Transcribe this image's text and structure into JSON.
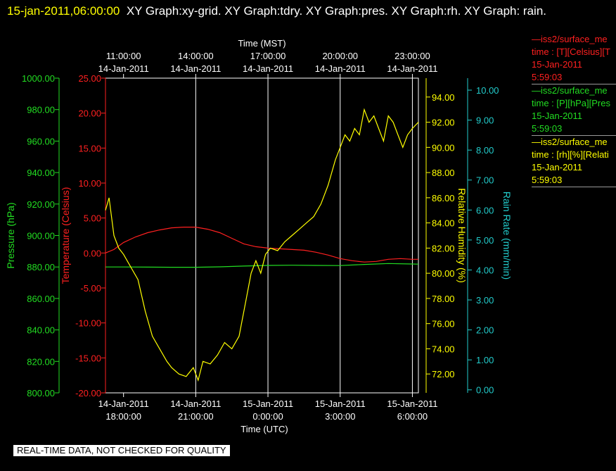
{
  "header": {
    "timestamp": "15-jan-2011,06:00:00",
    "title": "XY Graph:xy-grid.  XY Graph:tdry.  XY Graph:pres.  XY Graph:rh.  XY Graph: rain."
  },
  "footer": {
    "notice": "REAL-TIME DATA, NOT CHECKED FOR QUALITY"
  },
  "legend": [
    {
      "name": "iss2/surface_me",
      "line1": "—iss2/surface_me",
      "line2": "time : [T][Celsius][T",
      "line3": "15-Jan-2011",
      "line4": "5:59:03",
      "color": "#ff2020"
    },
    {
      "name": "iss2/surface_me",
      "line1": "—iss2/surface_me",
      "line2": "time : [P][hPa][Pres",
      "line3": "15-Jan-2011",
      "line4": "5:59:03",
      "color": "#22dd22"
    },
    {
      "name": "iss2/surface_me",
      "line1": "—iss2/surface_me",
      "line2": "time : [rh][%][Relati",
      "line3": "15-Jan-2011",
      "line4": "5:59:03",
      "color": "#ffff00"
    }
  ],
  "chart_data": {
    "type": "line",
    "x_range_utc_hours": [
      17.25,
      30.25
    ],
    "top_axis": {
      "label": "Time (MST)",
      "ticks": [
        {
          "time": "11:00:00",
          "date": "14-Jan-2011",
          "utc_hour": 18
        },
        {
          "time": "14:00:00",
          "date": "14-Jan-2011",
          "utc_hour": 21
        },
        {
          "time": "17:00:00",
          "date": "14-Jan-2011",
          "utc_hour": 24
        },
        {
          "time": "20:00:00",
          "date": "14-Jan-2011",
          "utc_hour": 27
        },
        {
          "time": "23:00:00",
          "date": "14-Jan-2011",
          "utc_hour": 30
        }
      ]
    },
    "bottom_axis": {
      "label": "Time (UTC)",
      "ticks": [
        {
          "date": "14-Jan-2011",
          "time": "18:00:00",
          "utc_hour": 18
        },
        {
          "date": "14-Jan-2011",
          "time": "21:00:00",
          "utc_hour": 21
        },
        {
          "date": "15-Jan-2011",
          "time": "0:00:00",
          "utc_hour": 24
        },
        {
          "date": "15-Jan-2011",
          "time": "3:00:00",
          "utc_hour": 27
        },
        {
          "date": "15-Jan-2011",
          "time": "6:00:00",
          "utc_hour": 30
        }
      ]
    },
    "grid_lines_utc_hours": [
      21,
      24,
      27,
      30
    ],
    "axes": {
      "pressure": {
        "label": "Pressure (hPa)",
        "range": [
          800,
          1000
        ],
        "color": "#22dd22",
        "ticks": [
          "800.00",
          "820.00",
          "840.00",
          "860.00",
          "880.00",
          "900.00",
          "920.00",
          "940.00",
          "960.00",
          "980.00",
          "1000.00"
        ]
      },
      "temperature": {
        "label": "Temperature (Celsius)",
        "range": [
          -20,
          25
        ],
        "color": "#ff2020",
        "ticks": [
          "-20.00",
          "-15.00",
          "-10.00",
          "-5.00",
          "0.00",
          "5.00",
          "10.00",
          "15.00",
          "20.00",
          "25.00"
        ]
      },
      "humidity": {
        "label": "Relative Humidity (%)",
        "range": [
          70.5,
          95.5
        ],
        "color": "#ffff00",
        "ticks": [
          "72.00",
          "74.00",
          "76.00",
          "78.00",
          "80.00",
          "82.00",
          "84.00",
          "86.00",
          "88.00",
          "90.00",
          "92.00",
          "94.00"
        ]
      },
      "rain": {
        "label": "Rain Rate (mm/min)",
        "range": [
          -0.1,
          10.4
        ],
        "color": "#22cccc",
        "ticks": [
          "0.00",
          "1.00",
          "2.00",
          "3.00",
          "4.00",
          "5.00",
          "6.00",
          "7.00",
          "8.00",
          "9.00",
          "10.00"
        ]
      }
    },
    "series": [
      {
        "name": "Temperature",
        "axis": "temperature",
        "color": "#ff2020",
        "x": [
          17.25,
          17.6,
          18.0,
          18.5,
          19.0,
          19.5,
          20.0,
          20.5,
          21.0,
          21.5,
          22.0,
          22.5,
          23.0,
          23.5,
          24.0,
          24.5,
          25.0,
          25.5,
          26.0,
          26.5,
          27.0,
          27.5,
          28.0,
          28.5,
          29.0,
          29.5,
          30.0,
          30.25
        ],
        "values": [
          0.0,
          0.5,
          1.5,
          2.3,
          2.9,
          3.3,
          3.6,
          3.7,
          3.7,
          3.4,
          2.9,
          2.1,
          1.3,
          0.9,
          0.7,
          0.6,
          0.5,
          0.4,
          0.1,
          -0.3,
          -0.8,
          -1.1,
          -1.3,
          -1.2,
          -0.9,
          -0.8,
          -0.9,
          -0.9
        ]
      },
      {
        "name": "Pressure",
        "axis": "pressure",
        "color": "#22dd22",
        "x": [
          17.25,
          18.0,
          19.0,
          20.0,
          21.0,
          22.0,
          23.0,
          24.0,
          25.0,
          26.0,
          27.0,
          28.0,
          29.0,
          30.0,
          30.25
        ],
        "values": [
          880.0,
          880.0,
          879.9,
          879.8,
          879.8,
          880.1,
          880.6,
          881.0,
          881.1,
          881.0,
          880.9,
          881.6,
          882.2,
          881.9,
          881.8
        ]
      },
      {
        "name": "Relative Humidity",
        "axis": "humidity",
        "color": "#ffff00",
        "x": [
          17.25,
          17.4,
          17.6,
          17.8,
          18.0,
          18.3,
          18.6,
          18.9,
          19.2,
          19.5,
          19.8,
          20.0,
          20.3,
          20.6,
          20.9,
          21.1,
          21.3,
          21.6,
          21.9,
          22.2,
          22.5,
          22.8,
          23.1,
          23.3,
          23.5,
          23.7,
          23.9,
          24.1,
          24.4,
          24.7,
          25.0,
          25.3,
          25.6,
          25.9,
          26.2,
          26.5,
          26.8,
          27.0,
          27.2,
          27.4,
          27.6,
          27.8,
          28.0,
          28.2,
          28.4,
          28.6,
          28.8,
          29.0,
          29.2,
          29.4,
          29.6,
          29.8,
          30.0,
          30.25
        ],
        "values": [
          85.0,
          86.0,
          83.0,
          82.0,
          81.5,
          80.5,
          79.5,
          77.0,
          75.0,
          74.0,
          73.0,
          72.5,
          72.0,
          71.8,
          72.5,
          71.5,
          73.0,
          72.8,
          73.5,
          74.5,
          74.0,
          75.0,
          78.0,
          80.0,
          81.0,
          80.0,
          81.5,
          82.0,
          81.8,
          82.5,
          83.0,
          83.5,
          84.0,
          84.5,
          85.5,
          87.0,
          89.0,
          90.0,
          91.0,
          90.5,
          91.5,
          91.0,
          93.0,
          92.0,
          92.5,
          91.5,
          90.5,
          92.5,
          92.0,
          91.0,
          90.0,
          91.0,
          91.5,
          92.0
        ]
      }
    ]
  }
}
